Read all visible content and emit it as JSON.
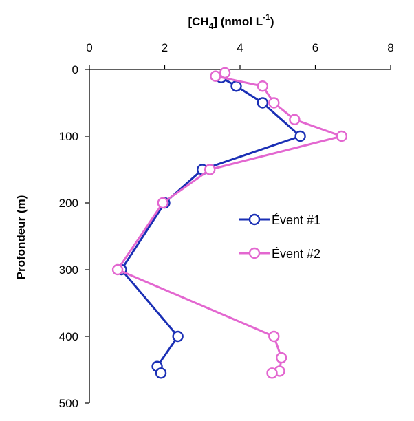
{
  "chart_data": {
    "type": "line",
    "xlabel_prefix": "[CH",
    "xlabel_sub": "4",
    "xlabel_mid": "] (nmol L",
    "xlabel_sup": "-1",
    "xlabel_suffix": ")",
    "ylabel": "Profondeur (m)",
    "xlim": [
      0,
      8
    ],
    "ylim": [
      0,
      500
    ],
    "y_inverted": true,
    "x_axis_position": "top",
    "xticks": [
      "0",
      "2",
      "4",
      "6",
      "8"
    ],
    "yticks": [
      "0",
      "100",
      "200",
      "300",
      "400",
      "500"
    ],
    "legend_position": "center-right",
    "series": [
      {
        "name": "Évent #1",
        "color": "#1a2fb5",
        "points": [
          {
            "x": 3.5,
            "y": 12
          },
          {
            "x": 3.9,
            "y": 25
          },
          {
            "x": 4.6,
            "y": 50
          },
          {
            "x": 5.6,
            "y": 100
          },
          {
            "x": 3.0,
            "y": 150
          },
          {
            "x": 2.0,
            "y": 200
          },
          {
            "x": 0.85,
            "y": 300
          },
          {
            "x": 2.35,
            "y": 400
          },
          {
            "x": 1.8,
            "y": 445
          },
          {
            "x": 1.9,
            "y": 455
          }
        ]
      },
      {
        "name": "Évent #2",
        "color": "#e367d0",
        "points": [
          {
            "x": 3.6,
            "y": 5
          },
          {
            "x": 3.35,
            "y": 10
          },
          {
            "x": 4.6,
            "y": 25
          },
          {
            "x": 4.9,
            "y": 50
          },
          {
            "x": 5.45,
            "y": 75
          },
          {
            "x": 6.7,
            "y": 100
          },
          {
            "x": 3.2,
            "y": 150
          },
          {
            "x": 1.95,
            "y": 200
          },
          {
            "x": 0.75,
            "y": 300
          },
          {
            "x": 4.9,
            "y": 400
          },
          {
            "x": 5.1,
            "y": 432
          },
          {
            "x": 5.05,
            "y": 452
          },
          {
            "x": 4.85,
            "y": 455
          }
        ]
      }
    ]
  }
}
